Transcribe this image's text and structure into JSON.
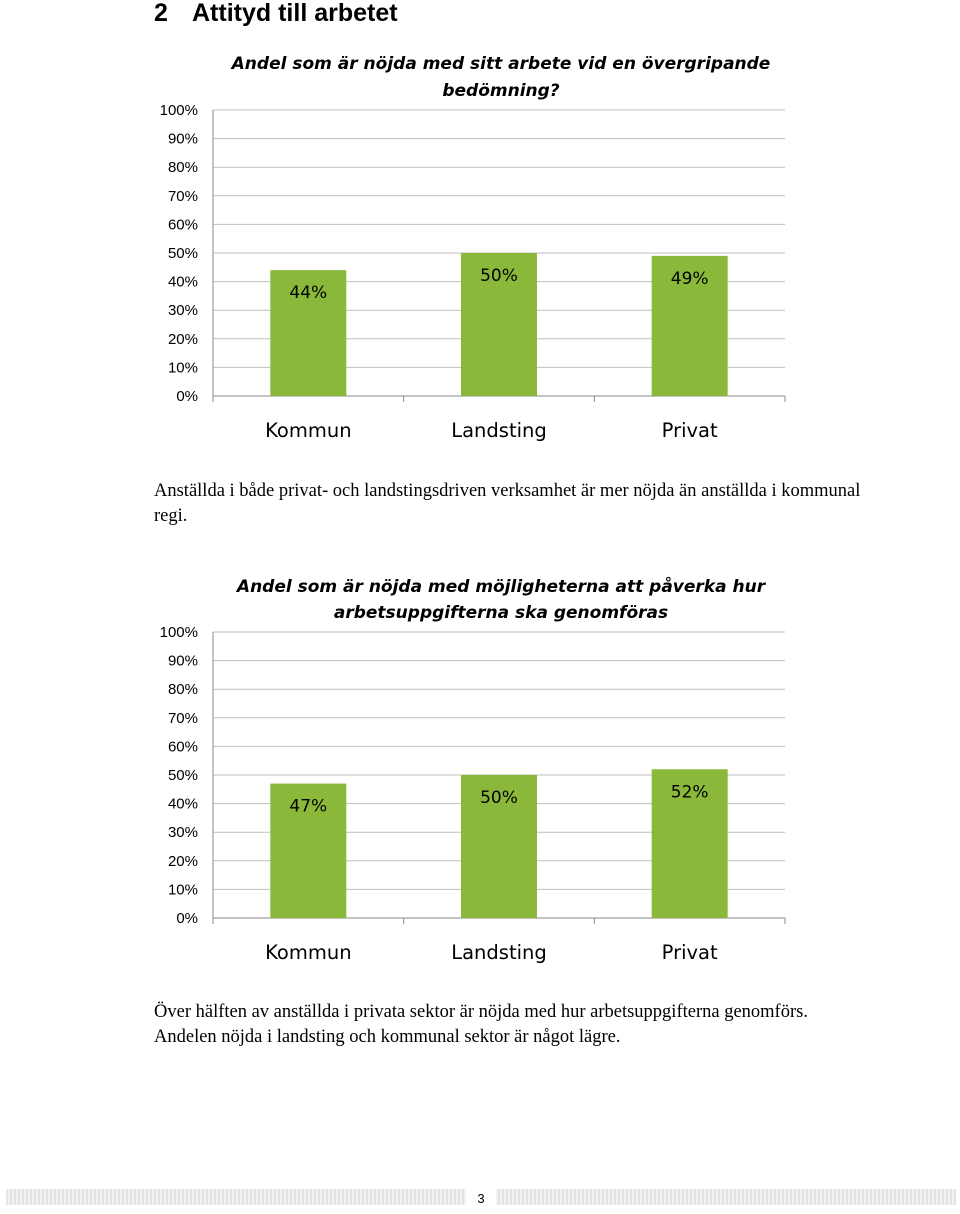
{
  "heading": {
    "number": "2",
    "title": "Attityd till arbetet"
  },
  "chart_data": [
    {
      "type": "bar",
      "title_lines": [
        "Andel som är nöjda med sitt arbete vid en övergripande",
        "bedömning?"
      ],
      "categories": [
        "Kommun",
        "Landsting",
        "Privat"
      ],
      "values": [
        44,
        50,
        49
      ],
      "data_labels": [
        "44%",
        "50%",
        "49%"
      ],
      "y_ticks": [
        "100%",
        "90%",
        "80%",
        "70%",
        "60%",
        "50%",
        "40%",
        "30%",
        "20%",
        "10%",
        "0%"
      ],
      "ylim": [
        0,
        100
      ],
      "grid": true,
      "bar_color": "#8ab83a",
      "xlabel": "",
      "ylabel": ""
    },
    {
      "type": "bar",
      "title_lines": [
        "Andel som är nöjda med möjligheterna att påverka hur",
        "arbetsuppgifterna ska genomföras"
      ],
      "categories": [
        "Kommun",
        "Landsting",
        "Privat"
      ],
      "values": [
        47,
        50,
        52
      ],
      "data_labels": [
        "47%",
        "50%",
        "52%"
      ],
      "y_ticks": [
        "100%",
        "90%",
        "80%",
        "70%",
        "60%",
        "50%",
        "40%",
        "30%",
        "20%",
        "10%",
        "0%"
      ],
      "ylim": [
        0,
        100
      ],
      "grid": true,
      "bar_color": "#8ab83a",
      "xlabel": "",
      "ylabel": ""
    }
  ],
  "paragraphs": [
    "Anställda i både privat- och landstingsdriven verksamhet är mer nöjda än anställda i kommunal regi.",
    "Över hälften av anställda i privata sektor är nöjda med hur arbetsuppgifterna genomförs. Andelen nöjda i landsting och kommunal sektor är något lägre."
  ],
  "footer": {
    "page_number": "3"
  }
}
